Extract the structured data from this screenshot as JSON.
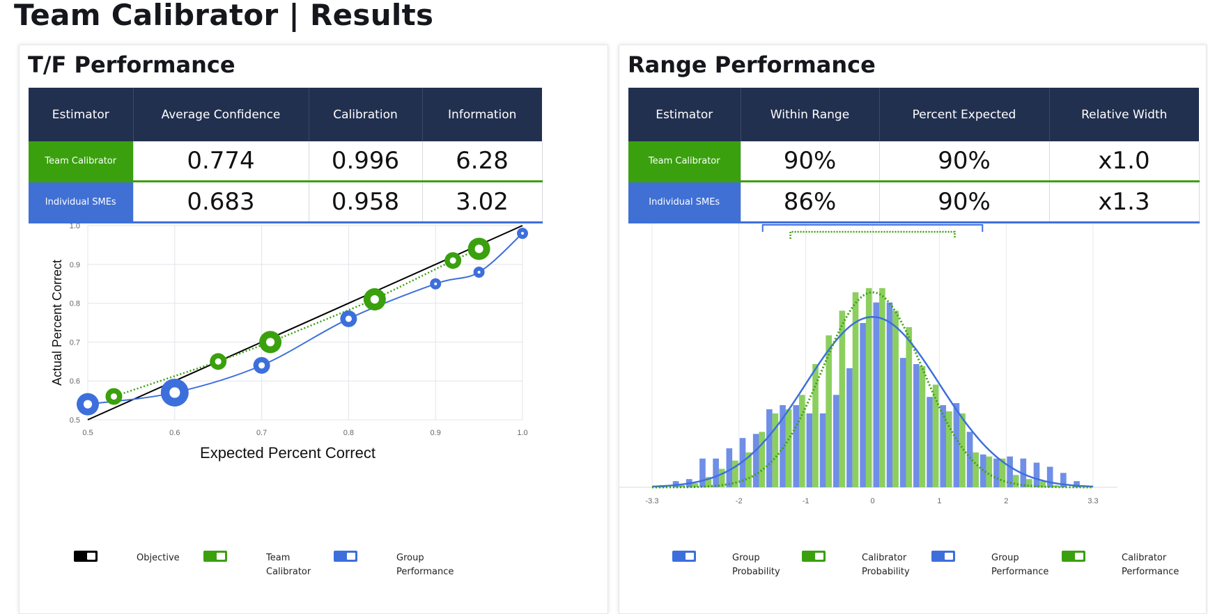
{
  "page": {
    "title": "Team Calibrator | Results"
  },
  "colors": {
    "header": "#22304f",
    "green": "#3aa00e",
    "blue": "#3d6fdc",
    "black": "#000000",
    "light_green": "#8ccf5f",
    "light_blue": "#6f8ee6"
  },
  "tf_panel": {
    "title": "T/F Performance",
    "headers": [
      "Estimator",
      "Average Confidence",
      "Calibration",
      "Information"
    ],
    "rows": [
      {
        "label": "Team Calibrator",
        "values": [
          "0.774",
          "0.996",
          "6.28"
        ]
      },
      {
        "label": "Individual SMEs",
        "values": [
          "0.683",
          "0.958",
          "3.02"
        ]
      }
    ],
    "legend": [
      {
        "label_lines": [
          "Objective"
        ],
        "color": "#000000"
      },
      {
        "label_lines": [
          "Team",
          "Calibrator"
        ],
        "color": "#3aa00e"
      },
      {
        "label_lines": [
          "Group",
          "Performance"
        ],
        "color": "#3d6fdc"
      }
    ]
  },
  "range_panel": {
    "title": "Range Performance",
    "headers": [
      "Estimator",
      "Within Range",
      "Percent Expected",
      "Relative Width"
    ],
    "rows": [
      {
        "label": "Team Calibrator",
        "values": [
          "90%",
          "90%",
          "x1.0"
        ]
      },
      {
        "label": "Individual SMEs",
        "values": [
          "86%",
          "90%",
          "x1.3"
        ]
      }
    ],
    "legend": [
      {
        "label_lines": [
          "Group",
          "Probability"
        ],
        "color": "#3d6fdc"
      },
      {
        "label_lines": [
          "Calibrator",
          "Probability"
        ],
        "color": "#3aa00e"
      },
      {
        "label_lines": [
          "Group",
          "Performance"
        ],
        "color": "#3d6fdc"
      },
      {
        "label_lines": [
          "Calibrator",
          "Performance"
        ],
        "color": "#3aa00e"
      }
    ]
  },
  "chart_data": [
    {
      "type": "line",
      "xlabel": "Expected Percent Correct",
      "ylabel": "Actual Percent Correct",
      "xlim": [
        0.5,
        1.0
      ],
      "ylim": [
        0.5,
        1.0
      ],
      "xticks": [
        "0.5",
        "0.6",
        "0.7",
        "0.8",
        "0.9",
        "1.0"
      ],
      "yticks": [
        "0.5",
        "0.6",
        "0.7",
        "0.8",
        "0.9",
        "1.0"
      ],
      "grid": true,
      "series": [
        {
          "name": "Objective",
          "color": "#000000",
          "style": "solid",
          "points": [
            [
              0.5,
              0.5
            ],
            [
              1.0,
              1.0
            ]
          ]
        },
        {
          "name": "Team Calibrator",
          "color": "#3aa00e",
          "style": "dotted",
          "points": [
            [
              0.53,
              0.56
            ],
            [
              0.65,
              0.65
            ],
            [
              0.71,
              0.7
            ],
            [
              0.83,
              0.81
            ],
            [
              0.92,
              0.91
            ],
            [
              0.95,
              0.94
            ]
          ],
          "weights": [
            2,
            2,
            3,
            3,
            2,
            3
          ]
        },
        {
          "name": "Group Performance",
          "color": "#3d6fdc",
          "style": "solid",
          "points": [
            [
              0.5,
              0.54
            ],
            [
              0.6,
              0.57
            ],
            [
              0.7,
              0.64
            ],
            [
              0.8,
              0.76
            ],
            [
              0.9,
              0.85
            ],
            [
              0.95,
              0.88
            ],
            [
              1.0,
              0.98
            ]
          ],
          "weights": [
            3,
            4,
            2,
            2,
            1,
            1,
            1
          ]
        }
      ]
    },
    {
      "type": "bar",
      "xlim": [
        -3.3,
        3.3
      ],
      "xticks": [
        "-3.3",
        "-2",
        "-1",
        "0",
        "1",
        "2",
        "3.3"
      ],
      "grid": true,
      "bin_width": 0.2,
      "series": [
        {
          "name": "Group Probability",
          "color": "#6f8ee6",
          "x": [
            -3.1,
            -2.9,
            -2.7,
            -2.5,
            -2.3,
            -2.1,
            -1.9,
            -1.7,
            -1.5,
            -1.3,
            -1.1,
            -0.9,
            -0.7,
            -0.5,
            -0.3,
            -0.1,
            0.1,
            0.3,
            0.5,
            0.7,
            0.9,
            1.1,
            1.3,
            1.5,
            1.7,
            1.9,
            2.1,
            2.3,
            2.5,
            2.7,
            2.9,
            3.1
          ],
          "values": [
            0.01,
            0.03,
            0.04,
            0.14,
            0.14,
            0.19,
            0.24,
            0.26,
            0.38,
            0.4,
            0.4,
            0.36,
            0.36,
            0.45,
            0.58,
            0.8,
            0.9,
            0.9,
            0.63,
            0.6,
            0.44,
            0.4,
            0.41,
            0.27,
            0.16,
            0.14,
            0.15,
            0.14,
            0.12,
            0.1,
            0.07,
            0.03
          ]
        },
        {
          "name": "Calibrator Probability",
          "color": "#8ccf5f",
          "x": [
            -2.9,
            -2.7,
            -2.5,
            -2.3,
            -2.1,
            -1.9,
            -1.7,
            -1.5,
            -1.3,
            -1.1,
            -0.9,
            -0.7,
            -0.5,
            -0.3,
            -0.1,
            0.1,
            0.3,
            0.5,
            0.7,
            0.9,
            1.1,
            1.3,
            1.5,
            1.7,
            1.9,
            2.1,
            2.3,
            2.5,
            2.7
          ],
          "values": [
            0.01,
            0.02,
            0.05,
            0.09,
            0.13,
            0.17,
            0.27,
            0.36,
            0.38,
            0.45,
            0.6,
            0.74,
            0.86,
            0.95,
            0.97,
            0.97,
            0.86,
            0.78,
            0.59,
            0.5,
            0.37,
            0.36,
            0.17,
            0.15,
            0.14,
            0.06,
            0.04,
            0.03,
            0.01
          ]
        },
        {
          "name": "Group Performance",
          "type": "line",
          "color": "#3d6fdc",
          "mean": 0,
          "sd": 1.0,
          "peak": 0.83
        },
        {
          "name": "Calibrator Performance",
          "type": "line",
          "color": "#3aa00e",
          "mean": 0,
          "sd": 0.75,
          "peak": 0.95
        }
      ],
      "brackets": [
        {
          "series": "Group Performance",
          "from": -1.645,
          "to": 1.645,
          "style": "solid"
        },
        {
          "series": "Calibrator Performance",
          "from": -1.23,
          "to": 1.23,
          "style": "dotted"
        }
      ]
    }
  ]
}
